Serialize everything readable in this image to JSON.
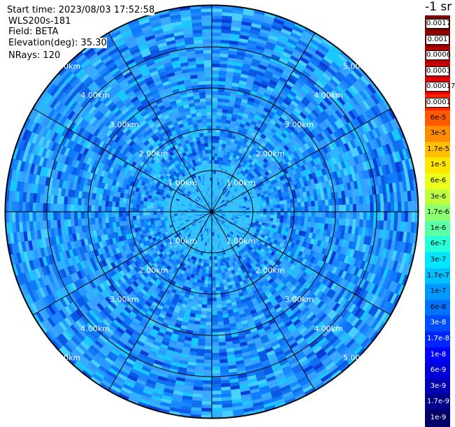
{
  "header": {
    "start_time": "Start time: 2023/08/03 17:52:58",
    "instrument": "WLS200s-181",
    "field": "Field: BETA",
    "elevation": "Elevation(deg): 35.30",
    "nrays": "NRays: 120"
  },
  "ring_labels": [
    "1.00km",
    "2.00km",
    "3.00km",
    "4.00km",
    "5.00km"
  ],
  "colorbar": {
    "unit_label": "-1 sr",
    "ticks": [
      "0.0017",
      "0.001",
      "0.0006",
      "0.0003",
      "0.00017",
      "0.0001",
      "6e-5",
      "3e-5",
      "1.7e-5",
      "1e-5",
      "6e-6",
      "3e-6",
      "1.7e-6",
      "1e-6",
      "6e-7",
      "3e-7",
      "1.7e-7",
      "1e-7",
      "6e-8",
      "3e-8",
      "1.7e-8",
      "1e-8",
      "6e-9",
      "3e-9",
      "1.7e-9",
      "1e-9"
    ],
    "colors": [
      "#7a0000",
      "#900000",
      "#b00000",
      "#cc0000",
      "#e80000",
      "#ff2200",
      "#ff5a00",
      "#ff8c00",
      "#ffbf00",
      "#ffe600",
      "#eaff1a",
      "#bfff40",
      "#8cff73",
      "#5affa6",
      "#26ffd9",
      "#00e6ff",
      "#00c0ff",
      "#0099ff",
      "#0073ff",
      "#004cff",
      "#0026ff",
      "#0000ff",
      "#0000d9",
      "#0000b3",
      "#00008c",
      "#000066"
    ]
  },
  "colors": {
    "background": "#ffffff",
    "field_base": "#1e8cff",
    "grid": "#000000"
  }
}
